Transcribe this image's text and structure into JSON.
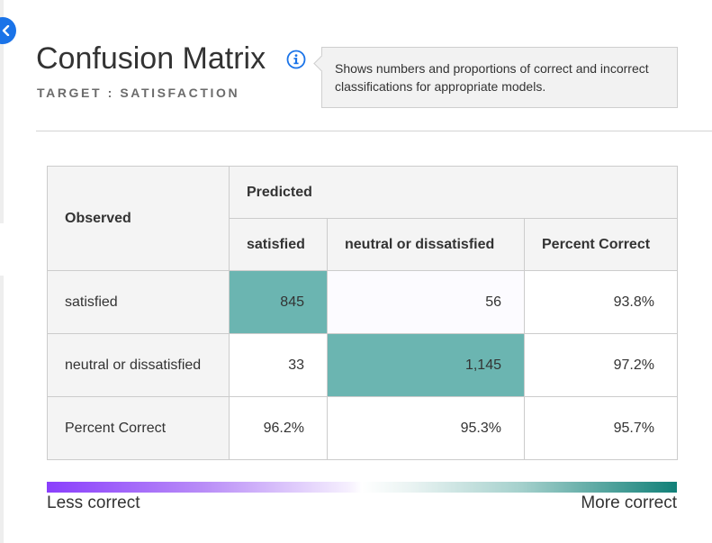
{
  "header": {
    "title": "Confusion Matrix",
    "subtitle": "TARGET : SATISFACTION",
    "info_tooltip": "Shows numbers and proportions of correct and incorrect classifications for appropriate models."
  },
  "matrix": {
    "observed_label": "Observed",
    "predicted_label": "Predicted",
    "columns": [
      "satisfied",
      "neutral or dissatisfied",
      "Percent Correct"
    ],
    "rows": [
      {
        "label": "satisfied",
        "cells": [
          "845",
          "56",
          "93.8%"
        ]
      },
      {
        "label": "neutral or dissatisfied",
        "cells": [
          "33",
          "1,145",
          "97.2%"
        ]
      },
      {
        "label": "Percent Correct",
        "cells": [
          "96.2%",
          "95.3%",
          "95.7%"
        ]
      }
    ]
  },
  "legend": {
    "left_label": "Less correct",
    "right_label": "More correct"
  },
  "colors": {
    "accent_blue": "#1a73e8",
    "correct_cell": "#6bb5b1",
    "gradient_low": "#8a3ffc",
    "gradient_high": "#118078"
  }
}
